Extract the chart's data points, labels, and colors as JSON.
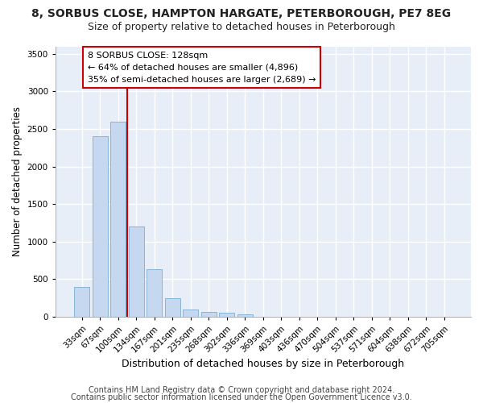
{
  "title1": "8, SORBUS CLOSE, HAMPTON HARGATE, PETERBOROUGH, PE7 8EG",
  "title2": "Size of property relative to detached houses in Peterborough",
  "xlabel": "Distribution of detached houses by size in Peterborough",
  "ylabel": "Number of detached properties",
  "categories": [
    "33sqm",
    "67sqm",
    "100sqm",
    "134sqm",
    "167sqm",
    "201sqm",
    "235sqm",
    "268sqm",
    "302sqm",
    "336sqm",
    "369sqm",
    "403sqm",
    "436sqm",
    "470sqm",
    "504sqm",
    "537sqm",
    "571sqm",
    "604sqm",
    "638sqm",
    "672sqm",
    "705sqm"
  ],
  "values": [
    400,
    2400,
    2600,
    1200,
    630,
    250,
    100,
    60,
    50,
    30,
    0,
    0,
    0,
    0,
    0,
    0,
    0,
    0,
    0,
    0,
    0
  ],
  "bar_color": "#c5d8ef",
  "bar_edge_color": "#7aadd4",
  "highlight_color": "#cc0000",
  "annotation_text": "8 SORBUS CLOSE: 128sqm\n← 64% of detached houses are smaller (4,896)\n35% of semi-detached houses are larger (2,689) →",
  "annotation_box_color": "#ffffff",
  "annotation_box_edge": "#cc0000",
  "ylim": [
    0,
    3600
  ],
  "yticks": [
    0,
    500,
    1000,
    1500,
    2000,
    2500,
    3000,
    3500
  ],
  "footnote1": "Contains HM Land Registry data © Crown copyright and database right 2024.",
  "footnote2": "Contains public sector information licensed under the Open Government Licence v3.0.",
  "bg_color": "#ffffff",
  "plot_bg_color": "#e8eef7",
  "grid_color": "#ffffff",
  "title1_fontsize": 10,
  "title2_fontsize": 9,
  "xlabel_fontsize": 9,
  "ylabel_fontsize": 8.5,
  "tick_fontsize": 7.5,
  "annotation_fontsize": 8,
  "footnote_fontsize": 7
}
